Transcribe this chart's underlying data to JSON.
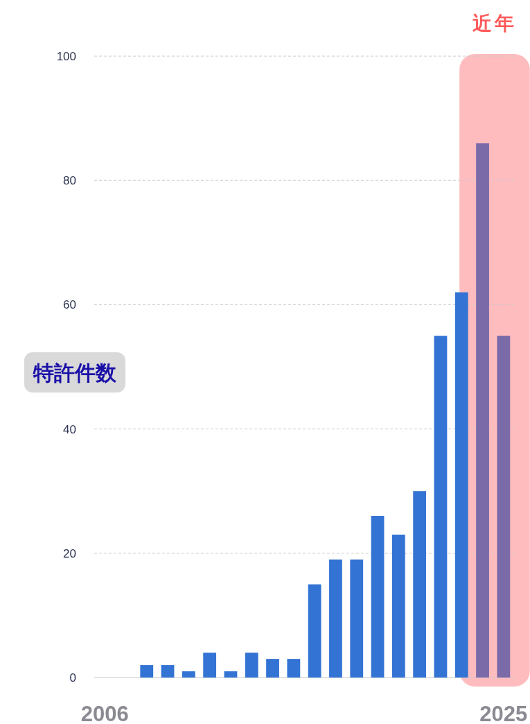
{
  "chart_data": {
    "type": "bar",
    "ylabel": "特許件数",
    "categories": [
      "2006",
      null,
      null,
      null,
      null,
      null,
      null,
      null,
      null,
      null,
      null,
      null,
      null,
      null,
      null,
      null,
      null,
      null,
      null,
      "2025"
    ],
    "values": [
      0,
      0,
      2,
      2,
      1,
      4,
      1,
      4,
      3,
      3,
      15,
      19,
      19,
      26,
      23,
      30,
      55,
      62,
      86,
      55
    ],
    "colors": [
      "#3373d4",
      "#3373d4",
      "#3373d4",
      "#3373d4",
      "#3373d4",
      "#3373d4",
      "#3373d4",
      "#3373d4",
      "#3373d4",
      "#3373d4",
      "#3373d4",
      "#3373d4",
      "#3373d4",
      "#3373d4",
      "#3373d4",
      "#3373d4",
      "#3373d4",
      "#3373d4",
      "#7b6aa8",
      "#7b6aa8"
    ],
    "ylim": [
      0,
      100
    ],
    "yticks": [
      0,
      20,
      40,
      60,
      80,
      100
    ],
    "grid": "y",
    "annotations": [
      "近年"
    ]
  }
}
